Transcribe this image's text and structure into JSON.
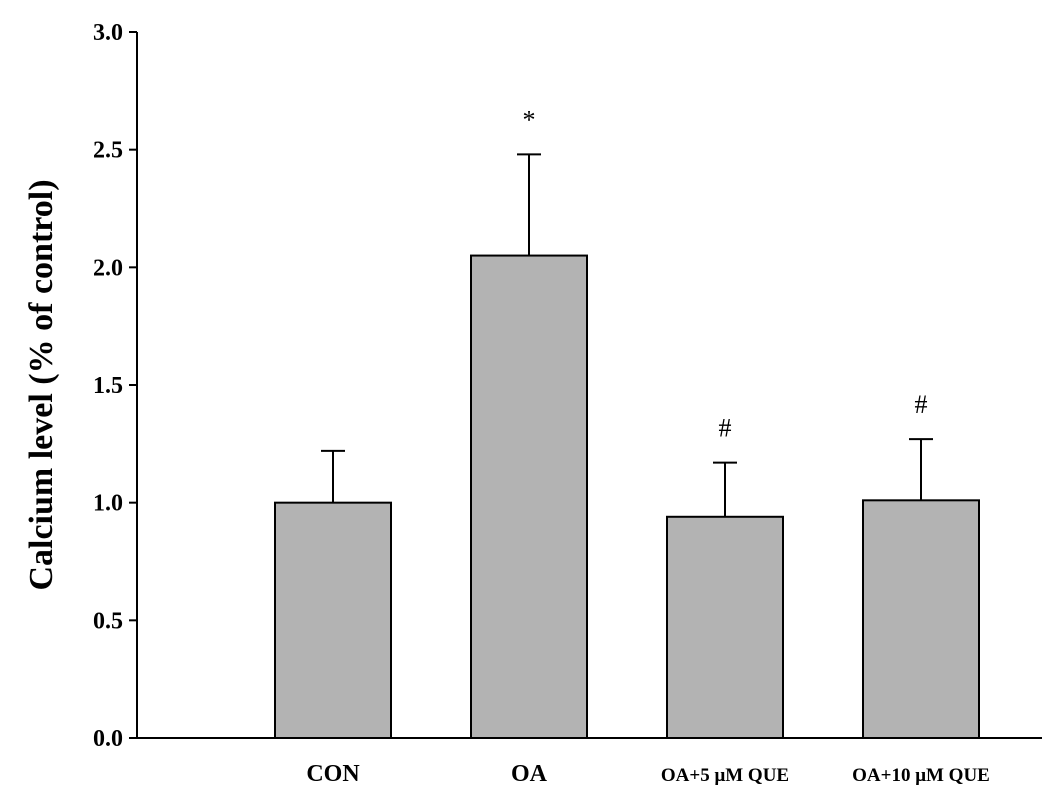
{
  "chart_data": {
    "type": "bar",
    "title": "",
    "xlabel": "",
    "ylabel": "Calcium level  (% of control)",
    "ylim": [
      0,
      3.0
    ],
    "yticks": [
      "0.0",
      "0.5",
      "1.0",
      "1.5",
      "2.0",
      "2.5",
      "3.0"
    ],
    "categories": [
      "CON",
      "OA",
      "OA+5 μM QUE",
      "OA+10 μM QUE"
    ],
    "values": [
      1.0,
      2.05,
      0.94,
      1.01
    ],
    "errors": [
      0.22,
      0.43,
      0.23,
      0.26
    ],
    "annotations": [
      "",
      "*",
      "#",
      "#"
    ],
    "bar_color": "#b3b3b3",
    "grid": false,
    "legend": "none"
  }
}
